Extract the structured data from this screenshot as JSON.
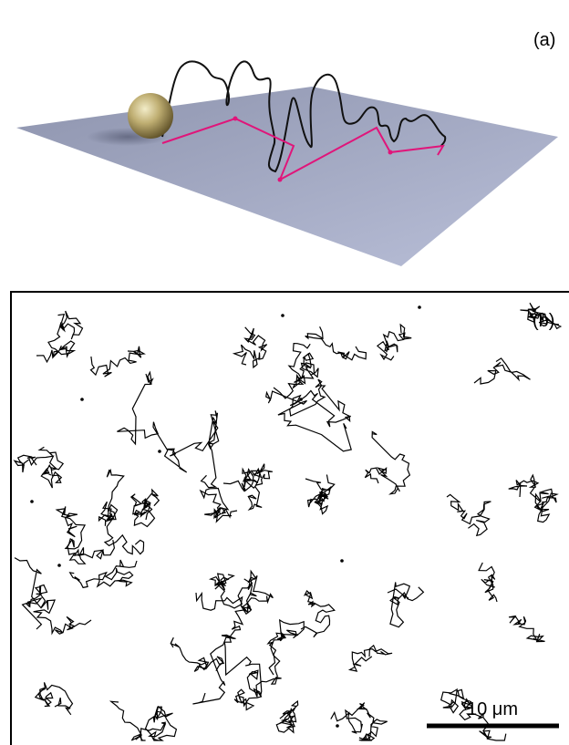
{
  "panel_a": {
    "label": "(a)"
  },
  "panel_b": {
    "label": "(b)",
    "scale_bar": "10 μm"
  }
}
